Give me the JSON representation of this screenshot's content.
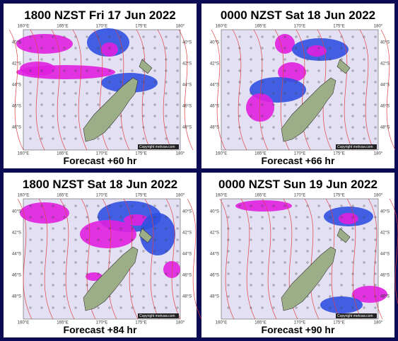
{
  "axes": {
    "lon_labels": [
      "160°E",
      "165°E",
      "170°E",
      "175°E",
      "180°"
    ],
    "lat_labels": [
      "40°S",
      "42°S",
      "44°S",
      "46°S",
      "48°S"
    ]
  },
  "copyright": "Copyright metvuw.com",
  "panels": [
    {
      "title": "1800 NZST Fri 17 Jun 2022",
      "forecast": "Forecast +60 hr"
    },
    {
      "title": "0000 NZST Sat 18 Jun 2022",
      "forecast": "Forecast +66 hr"
    },
    {
      "title": "1800 NZST Sat 18 Jun 2022",
      "forecast": "Forecast +84 hr"
    },
    {
      "title": "0000 NZST Sun 19 Jun 2022",
      "forecast": "Forecast +90 hr"
    }
  ]
}
